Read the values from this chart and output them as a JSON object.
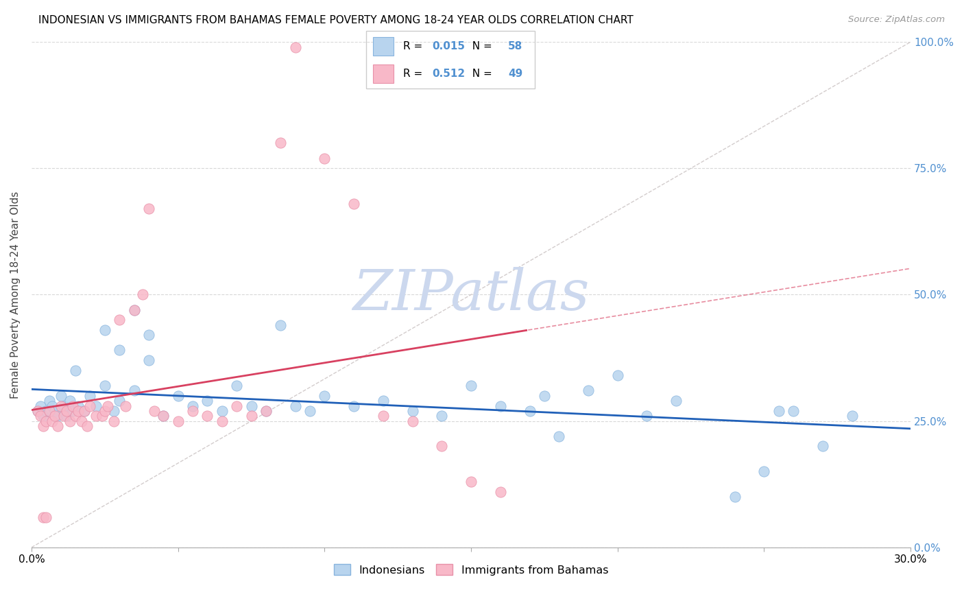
{
  "title": "INDONESIAN VS IMMIGRANTS FROM BAHAMAS FEMALE POVERTY AMONG 18-24 YEAR OLDS CORRELATION CHART",
  "source": "Source: ZipAtlas.com",
  "ylabel": "Female Poverty Among 18-24 Year Olds",
  "legend1_r": "0.015",
  "legend1_n": "58",
  "legend2_r": "0.512",
  "legend2_n": "49",
  "legend1_label": "Indonesians",
  "legend2_label": "Immigrants from Bahamas",
  "color_blue_fill": "#b8d4ee",
  "color_blue_edge": "#88b4de",
  "color_pink_fill": "#f8b8c8",
  "color_pink_edge": "#e890a8",
  "color_trend_blue": "#2060b8",
  "color_trend_pink": "#d84060",
  "color_ref_line": "#d0c8c8",
  "color_right_axis": "#5090d0",
  "watermark_color": "#ccd8ee",
  "indonesians_x": [
    0.002,
    0.003,
    0.004,
    0.005,
    0.006,
    0.007,
    0.008,
    0.009,
    0.01,
    0.011,
    0.012,
    0.013,
    0.014,
    0.015,
    0.016,
    0.018,
    0.02,
    0.022,
    0.025,
    0.028,
    0.03,
    0.035,
    0.04,
    0.045,
    0.05,
    0.055,
    0.06,
    0.065,
    0.07,
    0.075,
    0.08,
    0.085,
    0.09,
    0.095,
    0.1,
    0.11,
    0.12,
    0.13,
    0.14,
    0.15,
    0.16,
    0.17,
    0.175,
    0.18,
    0.19,
    0.2,
    0.21,
    0.22,
    0.24,
    0.25,
    0.255,
    0.26,
    0.27,
    0.28,
    0.025,
    0.03,
    0.035,
    0.04
  ],
  "indonesians_y": [
    0.27,
    0.28,
    0.26,
    0.27,
    0.29,
    0.28,
    0.27,
    0.26,
    0.3,
    0.28,
    0.26,
    0.29,
    0.27,
    0.35,
    0.28,
    0.27,
    0.3,
    0.28,
    0.32,
    0.27,
    0.29,
    0.31,
    0.37,
    0.26,
    0.3,
    0.28,
    0.29,
    0.27,
    0.32,
    0.28,
    0.27,
    0.44,
    0.28,
    0.27,
    0.3,
    0.28,
    0.29,
    0.27,
    0.26,
    0.32,
    0.28,
    0.27,
    0.3,
    0.22,
    0.31,
    0.34,
    0.26,
    0.29,
    0.1,
    0.15,
    0.27,
    0.27,
    0.2,
    0.26,
    0.43,
    0.39,
    0.47,
    0.42
  ],
  "bahamas_x": [
    0.002,
    0.003,
    0.004,
    0.005,
    0.006,
    0.007,
    0.008,
    0.009,
    0.01,
    0.011,
    0.012,
    0.013,
    0.014,
    0.015,
    0.016,
    0.017,
    0.018,
    0.019,
    0.02,
    0.022,
    0.024,
    0.025,
    0.026,
    0.028,
    0.03,
    0.032,
    0.035,
    0.038,
    0.04,
    0.042,
    0.045,
    0.05,
    0.055,
    0.06,
    0.065,
    0.07,
    0.075,
    0.08,
    0.085,
    0.09,
    0.1,
    0.11,
    0.12,
    0.13,
    0.14,
    0.15,
    0.16,
    0.004,
    0.005
  ],
  "bahamas_y": [
    0.27,
    0.26,
    0.24,
    0.25,
    0.27,
    0.25,
    0.26,
    0.24,
    0.28,
    0.26,
    0.27,
    0.25,
    0.28,
    0.26,
    0.27,
    0.25,
    0.27,
    0.24,
    0.28,
    0.26,
    0.26,
    0.27,
    0.28,
    0.25,
    0.45,
    0.28,
    0.47,
    0.5,
    0.67,
    0.27,
    0.26,
    0.25,
    0.27,
    0.26,
    0.25,
    0.28,
    0.26,
    0.27,
    0.8,
    0.99,
    0.77,
    0.68,
    0.26,
    0.25,
    0.2,
    0.13,
    0.11,
    0.06,
    0.06
  ],
  "xlim": [
    0,
    0.3
  ],
  "ylim": [
    0,
    1.0
  ],
  "yticks": [
    0.0,
    0.25,
    0.5,
    0.75,
    1.0
  ],
  "ytick_labels_right": [
    "0.0%",
    "25.0%",
    "50.0%",
    "75.0%",
    "100.0%"
  ],
  "xtick_positions": [
    0.0,
    0.05,
    0.1,
    0.15,
    0.2,
    0.25,
    0.3
  ],
  "xtick_labels": [
    "0.0%",
    "",
    "",
    "",
    "",
    "",
    "30.0%"
  ]
}
